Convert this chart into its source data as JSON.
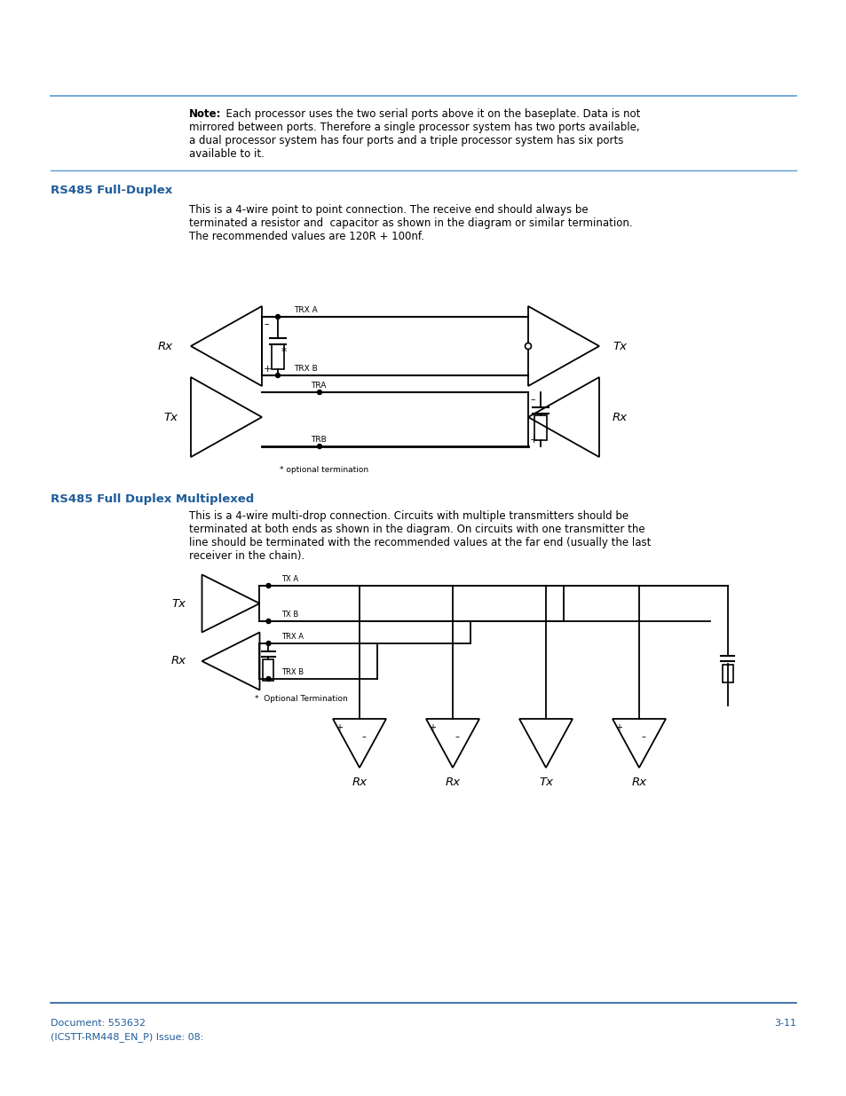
{
  "page_background": "#ffffff",
  "top_line_color": "#5b9bd5",
  "bottom_line_color": "#1f5c99",
  "note_bold": "Note:",
  "note_rest": "  Each processor uses the two serial ports above it on the baseplate. Data is not",
  "note_line2": "mirrored between ports. Therefore a single processor system has two ports available,",
  "note_line3": "a dual processor system has four ports and a triple processor system has six ports",
  "note_line4": "available to it.",
  "section1_title": "RS485 Full-Duplex",
  "section1_title_color": "#1f5c99",
  "section1_line1": "This is a 4-wire point to point connection. The receive end should always be",
  "section1_line2": "terminated a resistor and  capacitor as shown in the diagram or similar termination.",
  "section1_line3": "The recommended values are 120R + 100nf.",
  "section2_title": "RS485 Full Duplex Multiplexed",
  "section2_title_color": "#1f5c99",
  "section2_line1": "This is a 4-wire multi-drop connection. Circuits with multiple transmitters should be",
  "section2_line2": "terminated at both ends as shown in the diagram. On circuits with one transmitter the",
  "section2_line3": "line should be terminated with the recommended values at the far end (usually the last",
  "section2_line4": "receiver in the chain).",
  "footer_left_line1": "Document: 553632",
  "footer_left_line2": "(ICSTT-RM448_EN_P) Issue: 08:",
  "footer_right": "3-11",
  "footer_color": "#1f5c99",
  "lc": "#000000",
  "optional_termination": "* optional termination",
  "optional_termination2": "*  Optional Termination"
}
